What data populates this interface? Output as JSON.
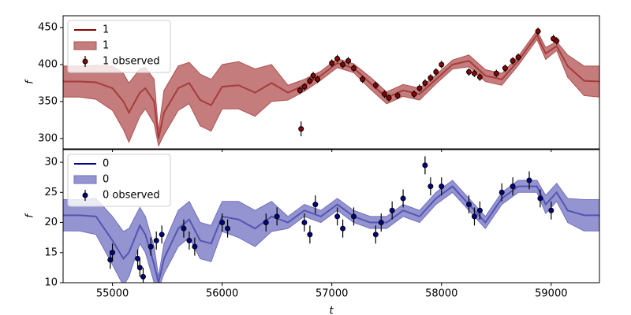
{
  "chart_data": [
    {
      "type": "line",
      "ylabel": "f",
      "x": [
        54550,
        54700,
        54850,
        55000,
        55100,
        55150,
        55250,
        55300,
        55380,
        55420,
        55470,
        55600,
        55700,
        55800,
        55900,
        56000,
        56150,
        56300,
        56450,
        56600,
        56750,
        56900,
        57050,
        57200,
        57350,
        57500,
        57650,
        57800,
        57950,
        58100,
        58250,
        58400,
        58550,
        58700,
        58870,
        58950,
        59050,
        59150,
        59300,
        59440
      ],
      "xlim": [
        54550,
        59440
      ],
      "xticks": [
        55000,
        56000,
        57000,
        58000,
        59000
      ],
      "ylim": [
        286,
        466
      ],
      "yticks": [
        300,
        350,
        400,
        450
      ],
      "legend": "upper left",
      "series": [
        {
          "name": "1",
          "color": "#8b0000",
          "values": [
            377,
            377,
            376,
            368,
            350,
            335,
            362,
            368,
            350,
            300,
            335,
            368,
            375,
            352,
            345,
            370,
            372,
            362,
            375,
            362,
            372,
            385,
            402,
            395,
            375,
            355,
            365,
            360,
            380,
            400,
            405,
            385,
            380,
            405,
            440,
            415,
            425,
            398,
            378,
            377
          ]
        },
        {
          "name": "1",
          "color": "#b05050",
          "lower": [
            356,
            356,
            353,
            338,
            312,
            295,
            330,
            340,
            320,
            290,
            305,
            338,
            347,
            317,
            310,
            340,
            340,
            330,
            350,
            352,
            364,
            379,
            396,
            389,
            367,
            347,
            357,
            352,
            374,
            394,
            397,
            377,
            372,
            399,
            434,
            407,
            419,
            383,
            358,
            356
          ],
          "upper": [
            398,
            398,
            399,
            398,
            388,
            375,
            394,
            396,
            380,
            310,
            365,
            398,
            403,
            387,
            380,
            400,
            404,
            394,
            400,
            372,
            380,
            391,
            408,
            401,
            383,
            363,
            373,
            368,
            386,
            406,
            413,
            393,
            388,
            411,
            446,
            423,
            431,
            413,
            398,
            398
          ]
        },
        {
          "name": "1 observed",
          "color": "#8b0000",
          "edgecolor": "#000000",
          "x": [
            56710,
            56720,
            56750,
            56800,
            56830,
            56870,
            57000,
            57050,
            57100,
            57150,
            57200,
            57280,
            57400,
            57480,
            57520,
            57600,
            57750,
            57800,
            57850,
            57900,
            57950,
            58000,
            58250,
            58300,
            58350,
            58500,
            58580,
            58650,
            58700,
            58880,
            59020,
            59050
          ],
          "values": [
            365,
            313,
            370,
            378,
            385,
            380,
            402,
            408,
            400,
            405,
            395,
            380,
            372,
            360,
            355,
            358,
            360,
            368,
            375,
            382,
            390,
            400,
            390,
            388,
            383,
            388,
            395,
            405,
            410,
            445,
            435,
            432
          ],
          "errors": [
            5,
            10,
            5,
            5,
            5,
            5,
            5,
            5,
            5,
            5,
            5,
            5,
            5,
            5,
            5,
            5,
            5,
            5,
            5,
            5,
            5,
            5,
            5,
            5,
            5,
            5,
            5,
            5,
            5,
            5,
            5,
            5
          ]
        }
      ]
    },
    {
      "type": "line",
      "ylabel": "f",
      "xlabel": "t",
      "x": [
        54550,
        54700,
        54850,
        55000,
        55100,
        55150,
        55250,
        55300,
        55380,
        55420,
        55470,
        55600,
        55700,
        55800,
        55900,
        56000,
        56150,
        56300,
        56450,
        56600,
        56750,
        56900,
        57050,
        57200,
        57350,
        57500,
        57650,
        57800,
        57950,
        58100,
        58250,
        58400,
        58550,
        58700,
        58870,
        58950,
        59050,
        59150,
        59300,
        59440
      ],
      "xlim": [
        54550,
        59440
      ],
      "xticks": [
        55000,
        56000,
        57000,
        58000,
        59000
      ],
      "ylim": [
        10,
        32.1
      ],
      "yticks": [
        10,
        15,
        20,
        25,
        30
      ],
      "legend": "upper left",
      "series": [
        {
          "name": "0",
          "color": "#00008b",
          "values": [
            21.2,
            21.2,
            21,
            17,
            14,
            15,
            19.5,
            18,
            13,
            10,
            14,
            19,
            20.5,
            17,
            16.5,
            21,
            20.5,
            19,
            21,
            20,
            22,
            21,
            23,
            21,
            20,
            20,
            22,
            21,
            24,
            26,
            23,
            20,
            24,
            26,
            26,
            23,
            25,
            22,
            21.2,
            21.2
          ]
        },
        {
          "name": "0",
          "color": "#7070c0",
          "lower": [
            18.6,
            18.6,
            18,
            13,
            9.5,
            11,
            16.5,
            15,
            10,
            9,
            11.5,
            16,
            17.5,
            14,
            13.5,
            18.5,
            17.5,
            16,
            18.5,
            19,
            21,
            20,
            22,
            20,
            19,
            19,
            21,
            20,
            23,
            25,
            22,
            19,
            23,
            25,
            25,
            21.5,
            23.5,
            20,
            18.6,
            18.6
          ],
          "upper": [
            23.8,
            23.8,
            24,
            21,
            18.5,
            19,
            22.5,
            21,
            16,
            11,
            16.5,
            22,
            23.5,
            20,
            19.5,
            23.5,
            23.5,
            22,
            23.5,
            21,
            23,
            22,
            24,
            22,
            21,
            21,
            23,
            22,
            25,
            27,
            24,
            21,
            25,
            27,
            27,
            24.5,
            26.5,
            24,
            23.8,
            23.8
          ]
        },
        {
          "name": "0 observed",
          "color": "#00008b",
          "edgecolor": "#000000",
          "x": [
            54980,
            55000,
            55230,
            55250,
            55280,
            55350,
            55400,
            55450,
            55650,
            55700,
            55750,
            56000,
            56050,
            56400,
            56500,
            56750,
            56800,
            56850,
            57050,
            57100,
            57200,
            57400,
            57450,
            57550,
            57650,
            57850,
            57900,
            58000,
            58250,
            58300,
            58350,
            58550,
            58650,
            58800,
            58900,
            59000
          ],
          "values": [
            13.8,
            15,
            14,
            12.5,
            11,
            16,
            17,
            18,
            19,
            17,
            16,
            20,
            19,
            20,
            21,
            20,
            18,
            23,
            21,
            19,
            21,
            18,
            20,
            22,
            24,
            29.5,
            26,
            26,
            23,
            21,
            22,
            25,
            26,
            27,
            24,
            22
          ],
          "errors": [
            1.5,
            1.5,
            1.5,
            1.5,
            1.5,
            1.5,
            1.5,
            1.5,
            1.5,
            1.5,
            1.5,
            1.5,
            1.5,
            1.5,
            1.5,
            1.5,
            1.5,
            1.5,
            1.5,
            1.5,
            1.5,
            1.5,
            1.5,
            1.5,
            1.5,
            1.5,
            1.5,
            1.5,
            1.5,
            1.5,
            1.5,
            1.5,
            1.5,
            1.5,
            1.5,
            1.5
          ]
        }
      ]
    }
  ]
}
